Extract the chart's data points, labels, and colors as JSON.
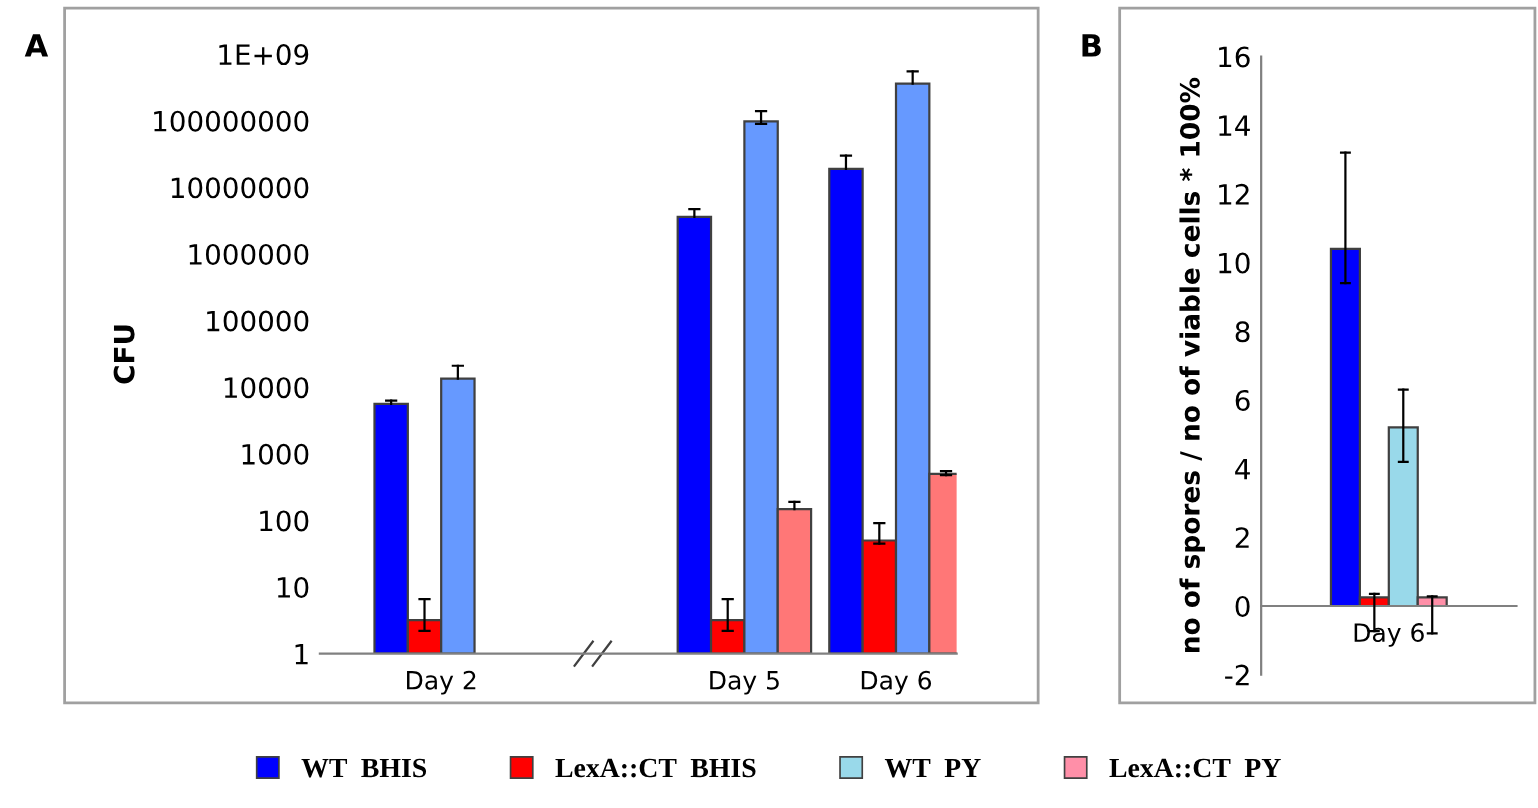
{
  "chart_data": [
    {
      "type": "bar",
      "title": "A",
      "ylabel": "CFU",
      "categories": [
        "Day 2",
        null,
        "Day 5",
        "Day 6"
      ],
      "log": "y",
      "ylim": [
        1,
        1000000000
      ],
      "yticks": [
        1,
        10,
        100,
        1000,
        10000,
        100000,
        1000000,
        10000000,
        100000000,
        {
          "value": 1000000000,
          "label": "1E+09"
        }
      ],
      "grid": false,
      "legend": false,
      "tick_labels": "xy",
      "series": [
        {
          "color": "#0000ff",
          "values": [
            5600,
            null,
            3600000,
            19000000
          ],
          "errors": [
            [
              5600,
              6300
            ],
            null,
            [
              3600000,
              4700000
            ],
            [
              19000000,
              30000000
            ]
          ]
        },
        {
          "color": "#ff0000",
          "values": [
            3.2,
            null,
            3.2,
            50
          ],
          "errors": [
            [
              2.2,
              6.6
            ],
            null,
            [
              2.2,
              6.6
            ],
            [
              45,
              91
            ]
          ]
        },
        {
          "color": "#6699ff",
          "values": [
            13500,
            null,
            98000000,
            360000000
          ],
          "errors": [
            [
              13500,
              21000
            ],
            null,
            [
              90000000,
              140000000
            ],
            [
              360000000,
              550000000
            ]
          ]
        },
        {
          "color": "#ff7777",
          "values": [
            null,
            null,
            148,
            500
          ],
          "errors": [
            null,
            null,
            [
              148,
              190
            ],
            [
              480,
              550
            ]
          ]
        }
      ]
    },
    {
      "type": "bar",
      "title": "B",
      "ylabel": "no of spores / no of viable cells * 100%",
      "categories": [
        "Day 6"
      ],
      "ylim": [
        -2,
        16
      ],
      "yticks": [
        -2,
        0,
        2,
        4,
        6,
        8,
        10,
        12,
        14,
        16
      ],
      "grid": false,
      "legend": "bottom",
      "series": [
        {
          "name": "WT  BHIS",
          "color": "#0000ff",
          "values": [
            10.4
          ],
          "errors": [
            [
              9.4,
              13.2
            ]
          ]
        },
        {
          "name": "LexA::CT  BHIS",
          "color": "#ff0000",
          "values": [
            0.25
          ],
          "errors": [
            [
              -0.73,
              0.35
            ]
          ]
        },
        {
          "name": "WT  PY",
          "color": "#99d9ea",
          "values": [
            5.2
          ],
          "errors": [
            [
              4.2,
              6.3
            ]
          ]
        },
        {
          "name": "LexA::CT  PY",
          "color": "#ff8fa8",
          "values": [
            0.25
          ],
          "errors": [
            [
              -0.8,
              0.28
            ]
          ]
        }
      ]
    }
  ]
}
